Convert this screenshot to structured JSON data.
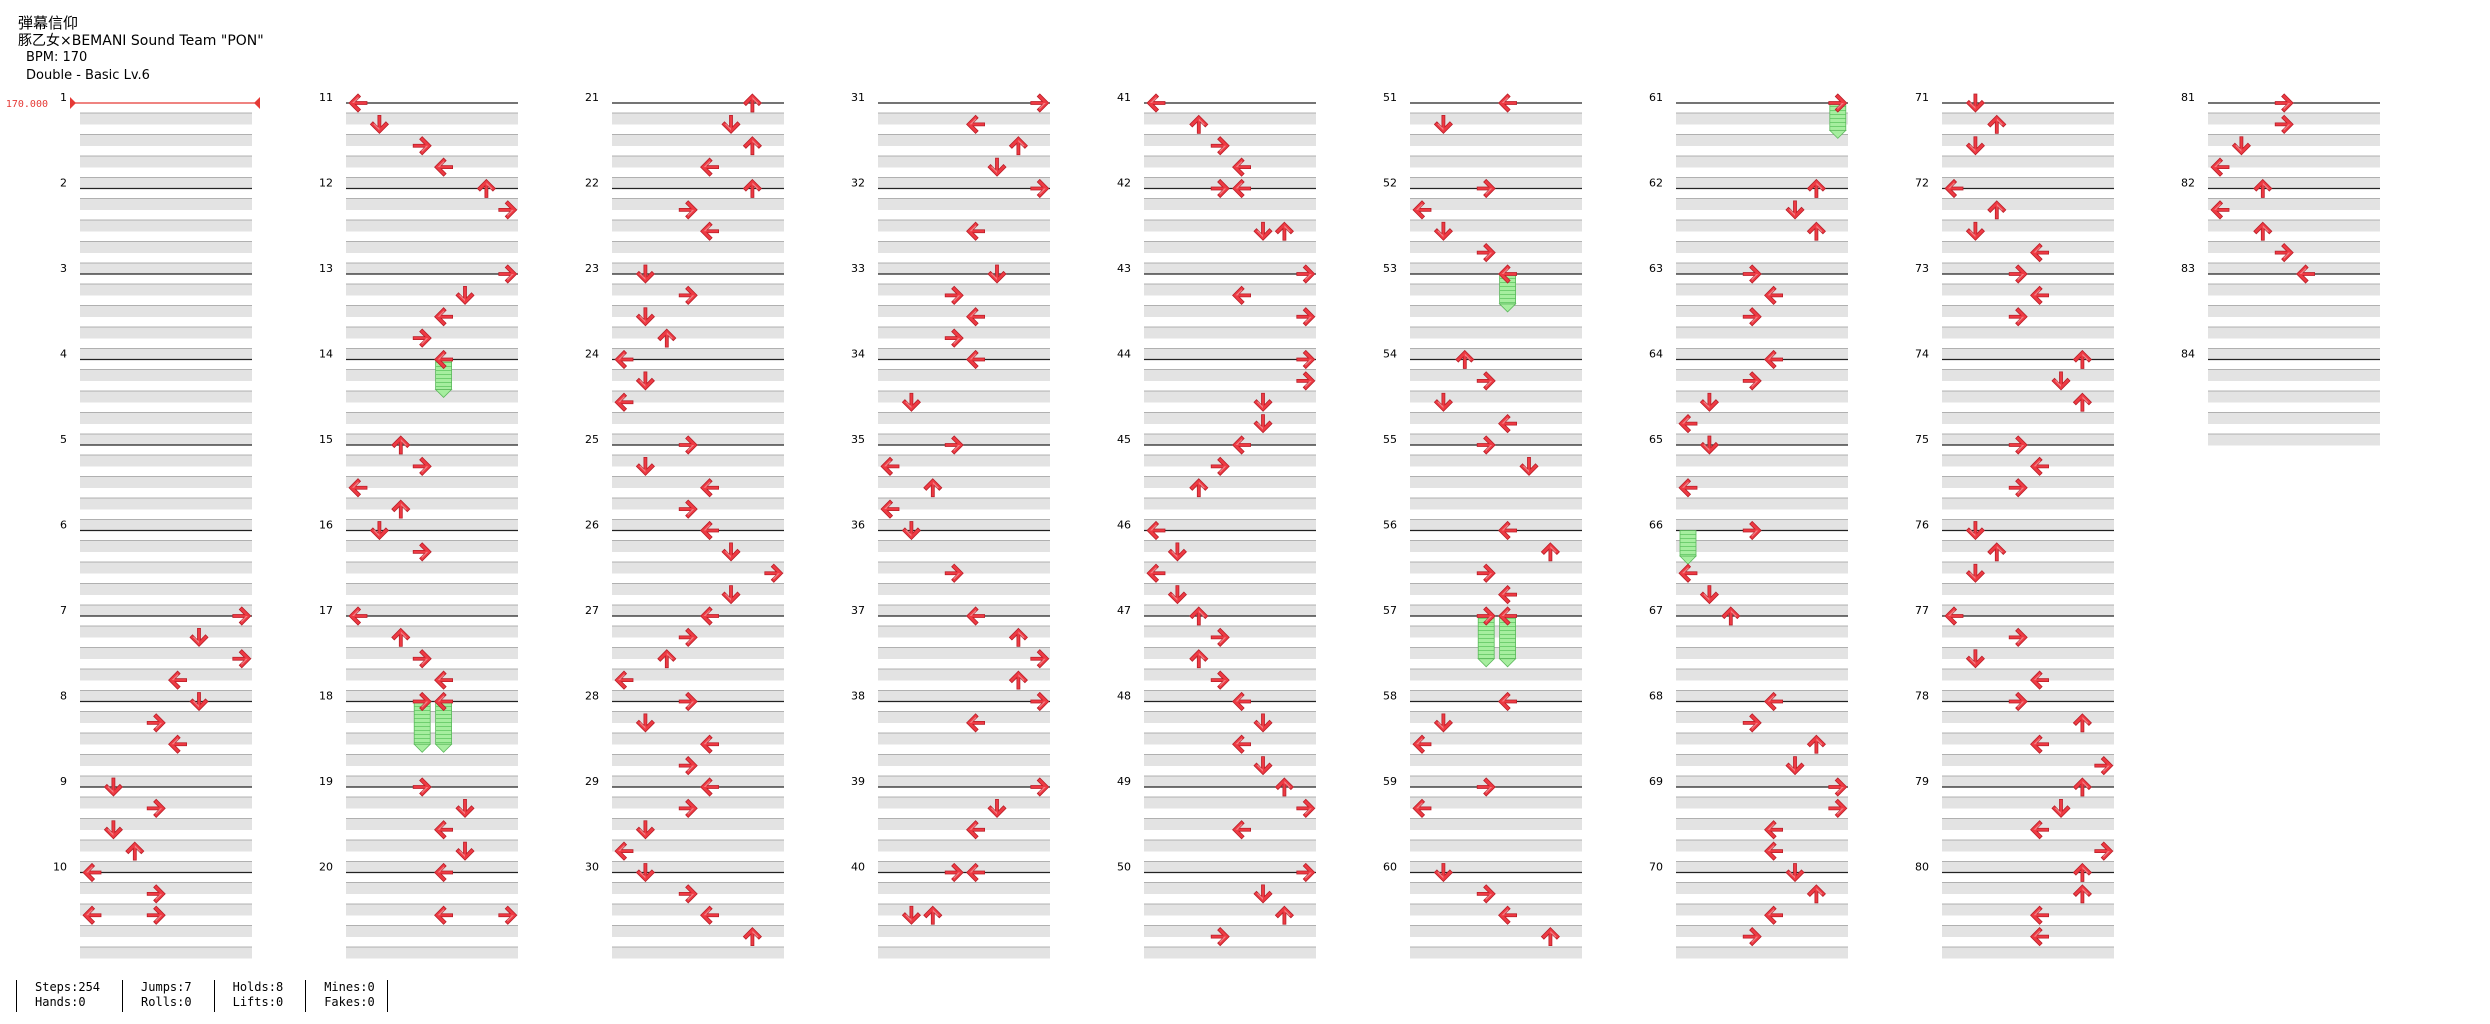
{
  "song": {
    "title": "弾幕信仰",
    "artist": "豚乙女×BEMANI Sound Team \"PON\"",
    "bpm": "BPM: 170",
    "difficulty": "Double - Basic  Lv.6"
  },
  "bpm_marker": "170.000",
  "measures": [
    "1",
    "2",
    "3",
    "4",
    "5",
    "6",
    "7",
    "8",
    "9",
    "10",
    "11",
    "12",
    "13",
    "14",
    "15",
    "16",
    "17",
    "18",
    "19",
    "20",
    "21",
    "22",
    "23",
    "24",
    "25",
    "26",
    "27",
    "28",
    "29",
    "30",
    "31",
    "32",
    "33",
    "34",
    "35",
    "36",
    "37",
    "38",
    "39",
    "40",
    "41",
    "42",
    "43",
    "44",
    "45",
    "46",
    "47",
    "48",
    "49",
    "50",
    "51",
    "52",
    "53",
    "54",
    "55",
    "56",
    "57",
    "58",
    "59",
    "60",
    "61",
    "62",
    "63",
    "64",
    "65",
    "66",
    "67",
    "68",
    "69",
    "70",
    "71",
    "72",
    "73",
    "74",
    "75",
    "76",
    "77",
    "78",
    "79",
    "80",
    "81",
    "82",
    "83",
    "84"
  ],
  "colors": {
    "note": "#ee3a43",
    "hold": "#8fe38f",
    "stripe": "#e3e3e3"
  },
  "stats": {
    "steps": "Steps:254",
    "hands": "Hands:0",
    "jumps": "Jumps:7",
    "rolls": "Rolls:0",
    "holds": "Holds:8",
    "lifts": "Lifts:0",
    "mines": "Mines:0",
    "fakes": "Fakes:0"
  }
}
